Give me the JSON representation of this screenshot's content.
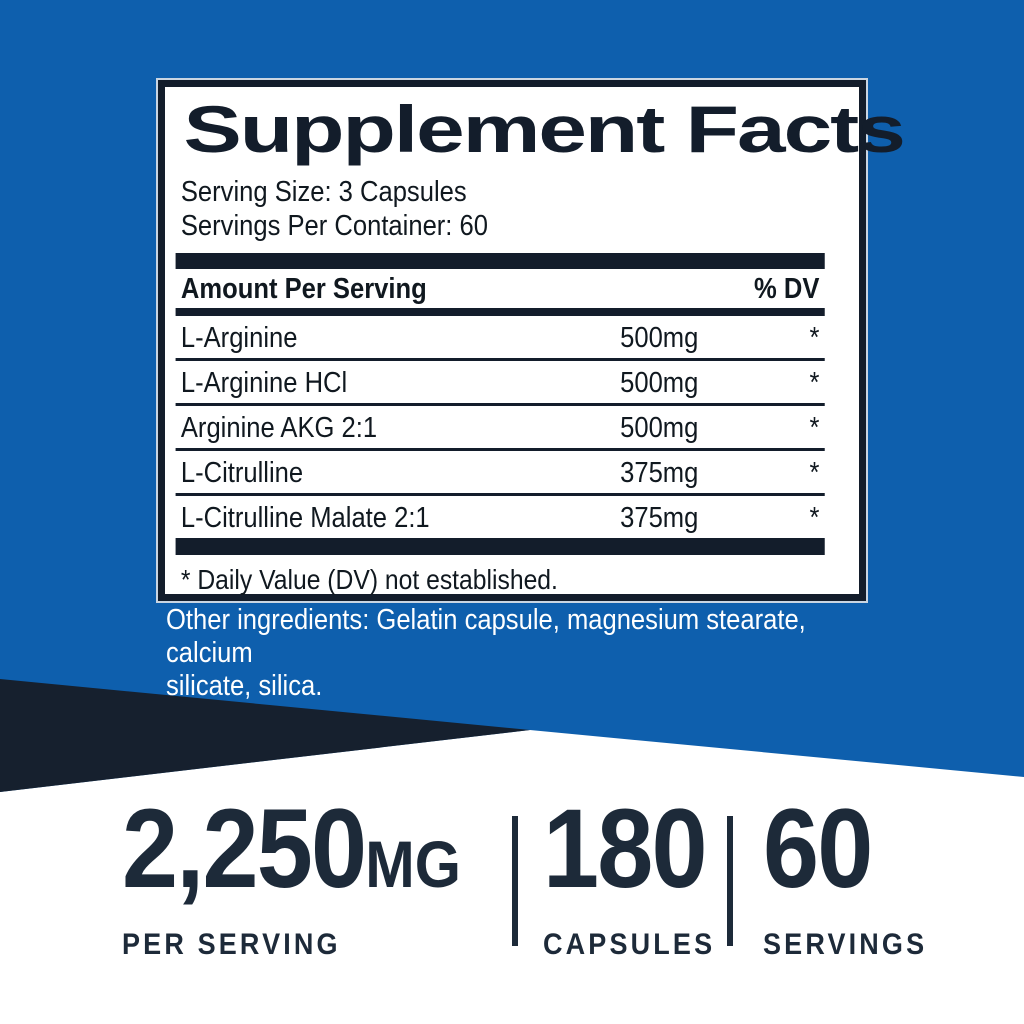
{
  "colors": {
    "background_blue": "#0e5fad",
    "wedge_dark_navy": "#16202e",
    "panel_ink": "#131d2b",
    "stats_navy": "#1d2a39",
    "white": "#ffffff"
  },
  "panel": {
    "title": "Supplement Facts",
    "serving_size": "Serving Size: 3 Capsules",
    "servings_per_container": "Servings Per Container: 60",
    "header": {
      "amount_label": "Amount Per Serving",
      "dv_label": "% DV"
    },
    "rows": [
      {
        "name": "L-Arginine",
        "amount": "500mg",
        "dv": "*"
      },
      {
        "name": "L-Arginine HCl",
        "amount": "500mg",
        "dv": "*"
      },
      {
        "name": "Arginine AKG 2:1",
        "amount": "500mg",
        "dv": "*"
      },
      {
        "name": "L-Citrulline",
        "amount": "375mg",
        "dv": "*"
      },
      {
        "name": "L-Citrulline Malate 2:1",
        "amount": "375mg",
        "dv": "*"
      }
    ],
    "footnote": "* Daily Value (DV) not established."
  },
  "other_ingredients": {
    "lines": [
      "Other ingredients: Gelatin capsule, magnesium stearate, calcium",
      "silicate, silica."
    ]
  },
  "stats": [
    {
      "value": "2,250",
      "unit": "MG",
      "label": "PER SERVING"
    },
    {
      "value": "180",
      "unit": "",
      "label": "CAPSULES"
    },
    {
      "value": "60",
      "unit": "",
      "label": "SERVINGS"
    }
  ]
}
